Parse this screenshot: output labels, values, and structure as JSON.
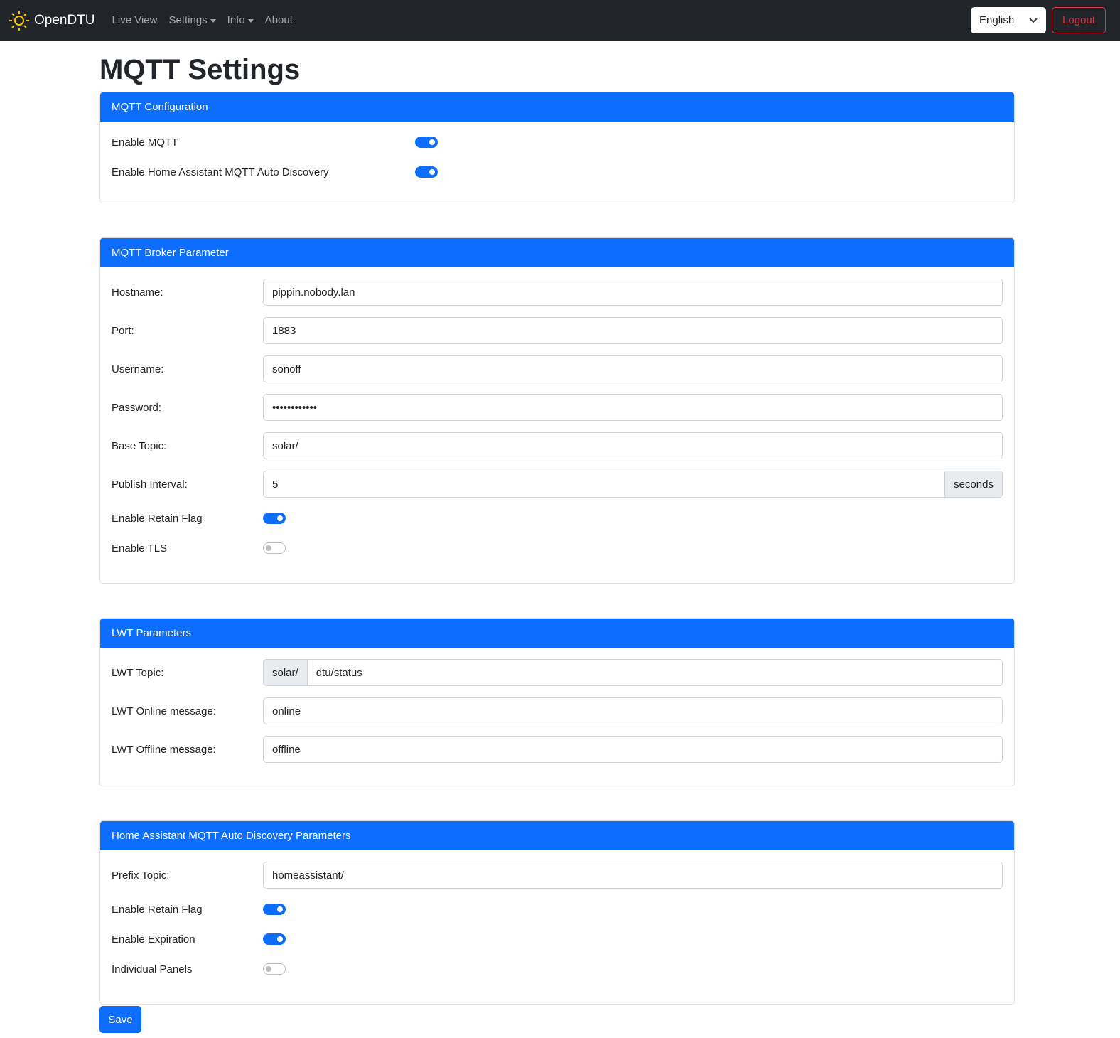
{
  "nav": {
    "brand": "OpenDTU",
    "links": [
      "Live View",
      "Settings",
      "Info",
      "About"
    ],
    "language": "English",
    "logout": "Logout"
  },
  "title": "MQTT Settings",
  "config": {
    "header": "MQTT Configuration",
    "enable_mqtt": "Enable MQTT",
    "enable_mqtt_on": true,
    "enable_ha": "Enable Home Assistant MQTT Auto Discovery",
    "enable_ha_on": true
  },
  "broker": {
    "header": "MQTT Broker Parameter",
    "hostname_label": "Hostname:",
    "hostname": "pippin.nobody.lan",
    "port_label": "Port:",
    "port": "1883",
    "username_label": "Username:",
    "username": "sonoff",
    "password_label": "Password:",
    "password": "••••••••••••",
    "base_label": "Base Topic:",
    "base": "solar/",
    "interval_label": "Publish Interval:",
    "interval": "5",
    "interval_unit": "seconds",
    "retain_label": "Enable Retain Flag",
    "retain_on": true,
    "tls_label": "Enable TLS",
    "tls_on": false
  },
  "lwt": {
    "header": "LWT Parameters",
    "topic_label": "LWT Topic:",
    "topic_prefix": "solar/",
    "topic": "dtu/status",
    "online_label": "LWT Online message:",
    "online": "online",
    "offline_label": "LWT Offline message:",
    "offline": "offline"
  },
  "ha": {
    "header": "Home Assistant MQTT Auto Discovery Parameters",
    "prefix_label": "Prefix Topic:",
    "prefix": "homeassistant/",
    "retain_label": "Enable Retain Flag",
    "retain_on": true,
    "expiration_label": "Enable Expiration",
    "expiration_on": true,
    "panels_label": "Individual Panels",
    "panels_on": false
  },
  "save": "Save",
  "colors": {
    "primary": "#0d6efd",
    "navbar": "#212529",
    "danger": "#dc3545",
    "sun": "#f7c600"
  }
}
